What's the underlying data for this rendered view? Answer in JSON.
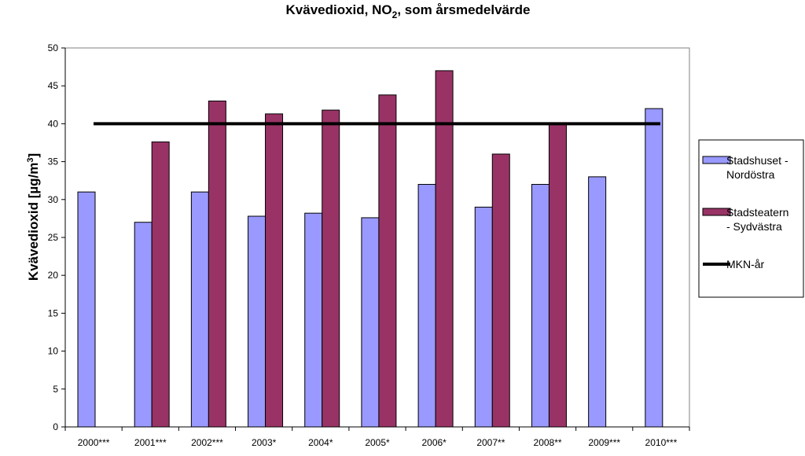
{
  "chart_data": {
    "type": "bar",
    "title": {
      "prefix": "Kvävedioxid, NO",
      "subscript": "2",
      "suffix": ", som årsmedelvärde"
    },
    "ylabel": {
      "prefix": "Kvävedioxid [µg/m",
      "superscript": "3",
      "suffix": "]"
    },
    "xlabel": "",
    "ylim": [
      0,
      50
    ],
    "yticks": [
      0,
      5,
      10,
      15,
      20,
      25,
      30,
      35,
      40,
      45,
      50
    ],
    "grid": false,
    "legend_position": "right",
    "categories": [
      "2000***",
      "2001***",
      "2002***",
      "2003*",
      "2004*",
      "2005*",
      "2006*",
      "2007**",
      "2008**",
      "2009***",
      "2010***"
    ],
    "series": [
      {
        "name_lines": [
          "Stadshuset -",
          "Nordöstra"
        ],
        "color": "#9999FF",
        "values": [
          31,
          27,
          31,
          27.8,
          28.2,
          27.6,
          32,
          29,
          32,
          33,
          42
        ]
      },
      {
        "name_lines": [
          "Stadsteatern",
          "- Sydvästra"
        ],
        "color": "#993366",
        "values": [
          null,
          37.6,
          43,
          41.3,
          41.8,
          43.8,
          47,
          36,
          40,
          null,
          null
        ]
      }
    ],
    "reference_line": {
      "name": "MKN-år",
      "value": 40,
      "color": "#000000"
    }
  }
}
